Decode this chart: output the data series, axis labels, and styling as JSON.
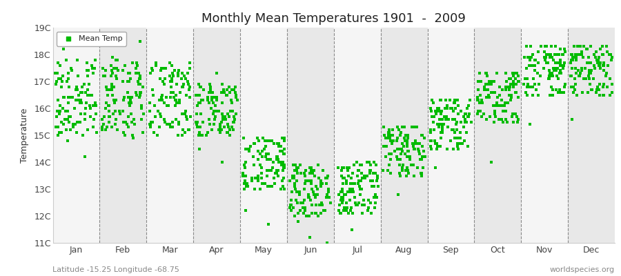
{
  "title": "Monthly Mean Temperatures 1901  -  2009",
  "ylabel": "Temperature",
  "subtitle": "Latitude -15.25 Longitude -68.75",
  "watermark": "worldspecies.org",
  "ylim": [
    11,
    19
  ],
  "yticks": [
    11,
    12,
    13,
    14,
    15,
    16,
    17,
    18,
    19
  ],
  "ytick_labels": [
    "11C",
    "12C",
    "13C",
    "14C",
    "15C",
    "16C",
    "17C",
    "18C",
    "19C"
  ],
  "months": [
    "Jan",
    "Feb",
    "Mar",
    "Apr",
    "May",
    "Jun",
    "Jul",
    "Aug",
    "Sep",
    "Oct",
    "Nov",
    "Dec"
  ],
  "dot_color": "#00bb00",
  "dot_size": 6,
  "bg_light": "#f5f5f5",
  "bg_dark": "#e8e8e8",
  "mean_temps_by_month": {
    "Jan": [
      17.5,
      17.8,
      16.2,
      15.5,
      16.8,
      15.1,
      17.3,
      16.5,
      15.8,
      14.2,
      15.3,
      16.1,
      15.7,
      16.4,
      17.2,
      18.5,
      15.9,
      16.7,
      15.4,
      14.8,
      16.3,
      17.1,
      15.6,
      15.2,
      16.0,
      17.4,
      18.2,
      16.8,
      15.5,
      15.9,
      16.6,
      17.0,
      15.3,
      16.2,
      15.8,
      16.5,
      17.3,
      15.1,
      16.9,
      15.4,
      17.6,
      16.3,
      15.7,
      16.1,
      17.8,
      15.0,
      16.4,
      15.5,
      17.2,
      16.0,
      15.8,
      16.7,
      17.5,
      15.3,
      16.2,
      15.6,
      17.1,
      16.4,
      15.9,
      16.8,
      17.4,
      15.2,
      16.0,
      15.7,
      17.0,
      16.3,
      15.5,
      16.9,
      17.7,
      15.1,
      16.5,
      15.4,
      17.3,
      16.1,
      15.8,
      16.6,
      17.2,
      15.0,
      16.4,
      15.9,
      17.6,
      16.2,
      15.5,
      16.3,
      17.1,
      15.7,
      16.0,
      16.8,
      17.5,
      15.4,
      16.1,
      15.6,
      17.4,
      16.5,
      15.2,
      16.7,
      17.8,
      15.3,
      16.9,
      15.8,
      17.0,
      16.6,
      16.2,
      15.1,
      17.3,
      15.9,
      16.4,
      17.7,
      15.6
    ],
    "Feb": [
      17.2,
      16.8,
      15.5,
      16.1,
      17.5,
      15.3,
      16.9,
      17.3,
      15.7,
      16.4,
      15.0,
      16.6,
      17.1,
      15.4,
      16.2,
      17.4,
      15.8,
      16.5,
      17.0,
      15.2,
      16.3,
      15.9,
      17.6,
      16.7,
      15.6,
      16.0,
      17.2,
      15.5,
      16.4,
      17.8,
      15.1,
      16.8,
      17.3,
      15.9,
      16.2,
      17.5,
      15.4,
      16.6,
      17.0,
      15.7,
      16.3,
      18.5,
      15.3,
      16.1,
      17.4,
      15.8,
      16.5,
      17.1,
      15.6,
      16.9,
      17.7,
      15.2,
      16.4,
      17.3,
      15.5,
      16.0,
      17.6,
      15.9,
      16.7,
      17.2,
      15.4,
      16.3,
      17.5,
      15.1,
      16.8,
      17.0,
      15.7,
      16.2,
      17.4,
      15.6,
      16.5,
      17.1,
      15.3,
      16.6,
      17.3,
      15.8,
      16.1,
      17.7,
      15.5,
      16.4,
      17.9,
      15.2,
      16.9,
      17.2,
      15.7,
      16.3,
      17.5,
      15.0,
      16.6,
      17.1,
      15.4,
      16.2,
      17.4,
      15.9,
      16.5,
      17.0,
      15.6,
      16.8,
      17.3,
      15.3,
      16.1,
      17.6,
      15.8,
      16.4,
      17.2,
      15.5,
      16.7,
      17.8,
      14.9
    ],
    "Mar": [
      16.5,
      15.8,
      16.2,
      17.3,
      15.5,
      16.9,
      17.1,
      15.3,
      16.4,
      17.5,
      15.7,
      16.1,
      16.8,
      15.4,
      16.6,
      17.2,
      15.0,
      16.3,
      17.4,
      15.9,
      16.5,
      17.7,
      15.2,
      16.7,
      17.0,
      15.6,
      16.2,
      17.3,
      15.4,
      16.8,
      17.5,
      15.1,
      16.4,
      17.1,
      15.8,
      16.3,
      17.6,
      15.5,
      16.9,
      17.2,
      15.3,
      16.5,
      17.4,
      15.7,
      16.1,
      17.0,
      15.9,
      16.6,
      17.3,
      15.4,
      16.2,
      17.5,
      15.2,
      16.8,
      17.1,
      15.6,
      16.4,
      17.7,
      15.0,
      16.3,
      17.4,
      15.8,
      16.5,
      17.0,
      15.5,
      16.7,
      17.2,
      15.3,
      16.1,
      17.6,
      15.7,
      16.4,
      17.3,
      15.4,
      16.9,
      17.5,
      15.1,
      16.6,
      17.1,
      15.9,
      16.3,
      17.4,
      15.5,
      16.8,
      17.0,
      15.6,
      16.2,
      17.7,
      15.3,
      16.5,
      17.3,
      15.8,
      16.1,
      17.5,
      15.4,
      16.7,
      17.2,
      15.0,
      16.4,
      17.6,
      15.7,
      16.3,
      17.1,
      15.5,
      16.9,
      17.4,
      15.2,
      16.6,
      17.3
    ],
    "Apr": [
      15.5,
      16.2,
      15.0,
      16.8,
      15.4,
      16.5,
      15.8,
      16.1,
      15.3,
      16.7,
      15.6,
      16.4,
      15.1,
      17.3,
      15.7,
      16.3,
      15.9,
      16.6,
      15.2,
      16.9,
      15.5,
      16.0,
      15.8,
      16.4,
      15.3,
      16.7,
      15.0,
      16.2,
      15.6,
      16.5,
      15.4,
      16.8,
      15.1,
      16.3,
      15.7,
      16.1,
      15.9,
      16.6,
      15.2,
      16.4,
      15.5,
      16.7,
      15.0,
      16.2,
      15.8,
      16.5,
      15.3,
      16.9,
      15.6,
      16.3,
      15.4,
      16.6,
      15.1,
      16.8,
      15.7,
      16.2,
      15.9,
      16.5,
      15.2,
      16.4,
      15.5,
      16.7,
      15.0,
      16.3,
      15.8,
      16.6,
      15.3,
      16.9,
      15.6,
      16.2,
      15.4,
      16.5,
      15.1,
      16.8,
      15.7,
      16.3,
      15.9,
      16.6,
      15.2,
      16.4,
      15.5,
      16.7,
      15.0,
      16.2,
      15.8,
      16.5,
      15.3,
      14.0,
      15.6,
      16.3,
      15.4,
      16.6,
      15.1,
      16.8,
      15.7,
      16.2,
      15.9,
      16.5,
      15.2,
      16.4,
      15.5,
      16.7,
      15.0,
      16.3,
      15.8,
      16.6,
      15.3,
      14.5,
      15.6
    ],
    "May": [
      13.5,
      14.2,
      13.8,
      14.5,
      13.1,
      14.8,
      13.4,
      14.1,
      13.7,
      14.4,
      13.0,
      14.7,
      13.3,
      14.0,
      13.6,
      14.3,
      13.9,
      14.6,
      13.2,
      14.9,
      13.5,
      14.2,
      13.8,
      14.5,
      13.1,
      14.8,
      13.4,
      14.1,
      13.7,
      14.4,
      13.0,
      14.7,
      13.3,
      14.0,
      13.6,
      14.3,
      13.9,
      14.6,
      13.2,
      14.9,
      13.5,
      14.2,
      13.8,
      14.5,
      13.1,
      14.8,
      13.4,
      14.1,
      13.7,
      14.4,
      13.0,
      14.7,
      13.3,
      14.0,
      13.6,
      14.3,
      13.9,
      14.6,
      13.2,
      14.9,
      13.5,
      12.2,
      13.8,
      14.5,
      13.1,
      14.8,
      13.4,
      14.1,
      13.7,
      14.4,
      13.0,
      14.7,
      13.3,
      14.0,
      11.7,
      14.3,
      13.9,
      14.6,
      13.2,
      14.9,
      13.5,
      14.2,
      13.8,
      14.5,
      13.1,
      14.8,
      13.4,
      14.1,
      13.7,
      14.4,
      13.0,
      14.7,
      13.3,
      14.0,
      13.6,
      14.3,
      13.9,
      14.6,
      13.2,
      14.9,
      13.5,
      14.2,
      13.8,
      14.5,
      13.1,
      14.8,
      13.4,
      14.1,
      13.7
    ],
    "Jun": [
      13.0,
      13.5,
      12.8,
      13.3,
      12.5,
      13.8,
      12.2,
      13.6,
      12.9,
      13.2,
      12.0,
      13.7,
      12.4,
      13.1,
      12.7,
      13.4,
      12.1,
      13.9,
      12.3,
      13.6,
      12.8,
      13.3,
      12.0,
      13.5,
      12.6,
      13.2,
      12.4,
      13.7,
      12.1,
      13.4,
      12.7,
      13.0,
      12.9,
      13.6,
      12.2,
      13.3,
      12.5,
      13.8,
      12.3,
      13.1,
      12.8,
      13.5,
      12.0,
      13.2,
      12.6,
      13.9,
      12.4,
      13.7,
      12.1,
      13.4,
      12.7,
      13.0,
      12.9,
      13.6,
      12.2,
      13.3,
      12.5,
      13.8,
      12.3,
      13.1,
      12.8,
      11.8,
      13.2,
      12.6,
      13.9,
      12.4,
      13.7,
      12.1,
      13.4,
      12.7,
      13.0,
      12.9,
      13.6,
      12.2,
      13.3,
      12.5,
      13.8,
      12.3,
      11.2,
      12.8,
      13.5,
      12.0,
      13.2,
      12.6,
      13.9,
      12.4,
      11.0,
      13.7,
      12.1,
      13.4,
      12.7,
      13.0,
      12.9,
      13.6,
      12.2,
      13.3,
      12.5,
      13.8,
      12.3,
      13.1,
      12.8,
      13.5,
      12.0,
      13.2,
      12.6,
      13.9,
      12.4,
      13.7,
      12.1
    ],
    "Jul": [
      13.2,
      13.7,
      12.9,
      13.4,
      12.6,
      13.9,
      12.3,
      13.5,
      13.0,
      13.3,
      12.1,
      13.8,
      12.5,
      13.2,
      12.8,
      13.5,
      12.2,
      14.0,
      12.4,
      13.7,
      12.9,
      13.4,
      12.1,
      13.6,
      12.7,
      13.3,
      12.5,
      13.8,
      12.2,
      13.5,
      12.8,
      13.1,
      13.0,
      13.7,
      12.3,
      13.4,
      12.6,
      13.9,
      12.4,
      13.2,
      12.9,
      13.6,
      12.1,
      13.3,
      12.7,
      14.0,
      12.5,
      13.8,
      12.2,
      13.5,
      12.8,
      13.1,
      13.0,
      13.7,
      12.3,
      13.4,
      12.6,
      13.9,
      12.4,
      13.2,
      12.9,
      13.6,
      12.1,
      13.3,
      12.7,
      14.0,
      12.5,
      13.8,
      12.2,
      13.5,
      12.8,
      13.1,
      13.0,
      13.7,
      12.3,
      13.4,
      12.6,
      13.9,
      12.4,
      13.2,
      12.9,
      13.6,
      12.1,
      13.3,
      12.7,
      11.5,
      12.5,
      13.8,
      12.2,
      13.5,
      12.8,
      13.1,
      13.0,
      13.7,
      12.3,
      13.4,
      12.6,
      13.9,
      12.4,
      13.2,
      12.9,
      13.6,
      12.1,
      13.3,
      12.7,
      14.0,
      12.5,
      13.8,
      12.2
    ],
    "Aug": [
      14.5,
      15.0,
      14.2,
      14.8,
      14.1,
      15.3,
      13.8,
      14.9,
      14.4,
      15.1,
      13.6,
      14.7,
      14.3,
      15.0,
      13.9,
      14.6,
      14.2,
      15.3,
      13.7,
      14.8,
      14.5,
      15.0,
      13.5,
      14.9,
      14.1,
      14.7,
      13.8,
      15.2,
      14.4,
      14.9,
      13.6,
      14.6,
      14.3,
      15.0,
      13.8,
      14.7,
      14.1,
      15.3,
      13.9,
      14.8,
      14.4,
      15.1,
      13.5,
      14.6,
      14.2,
      15.3,
      13.7,
      14.9,
      14.5,
      15.0,
      13.6,
      14.7,
      14.3,
      15.0,
      13.9,
      14.6,
      14.2,
      15.3,
      13.7,
      14.8,
      14.5,
      15.0,
      13.5,
      14.9,
      14.1,
      14.7,
      13.8,
      15.2,
      14.4,
      14.9,
      13.6,
      14.6,
      14.3,
      15.0,
      12.8,
      14.7,
      14.1,
      15.3,
      13.9,
      14.8,
      14.4,
      15.1,
      13.5,
      14.6,
      14.2,
      15.3,
      13.7,
      14.9,
      14.5,
      15.0,
      13.6,
      14.7,
      14.3,
      15.0,
      13.9,
      14.6,
      14.2,
      15.3,
      13.7,
      14.8,
      14.5,
      15.0,
      13.5,
      14.9,
      14.1,
      14.7,
      13.8,
      15.2,
      14.4
    ],
    "Sep": [
      15.5,
      16.0,
      15.2,
      15.8,
      15.1,
      16.3,
      14.8,
      15.9,
      15.4,
      16.1,
      14.6,
      15.7,
      15.3,
      16.0,
      14.9,
      15.6,
      15.2,
      16.3,
      14.7,
      15.8,
      15.5,
      16.0,
      14.5,
      15.9,
      15.1,
      15.7,
      14.8,
      16.2,
      15.4,
      15.9,
      14.6,
      15.6,
      15.3,
      16.0,
      14.8,
      15.7,
      15.1,
      16.3,
      14.9,
      15.8,
      15.4,
      16.1,
      14.5,
      15.6,
      15.2,
      16.3,
      14.7,
      15.9,
      15.5,
      16.0,
      14.6,
      15.7,
      15.3,
      16.0,
      14.9,
      15.6,
      15.2,
      16.3,
      14.7,
      15.8,
      15.5,
      16.0,
      14.5,
      15.9,
      15.1,
      15.7,
      14.8,
      16.2,
      15.4,
      15.9,
      14.6,
      15.6,
      15.3,
      16.0,
      13.8,
      15.7,
      15.1,
      16.3,
      14.9,
      15.8,
      15.4,
      16.1,
      14.5,
      15.6,
      15.2,
      16.3,
      14.7,
      15.9,
      15.5,
      16.0,
      14.6,
      15.7,
      15.3,
      16.0,
      14.9,
      15.6,
      15.2,
      16.3,
      14.7,
      15.8,
      15.5,
      16.0,
      14.5,
      15.9,
      15.1,
      15.7,
      14.8,
      16.2,
      15.4
    ],
    "Oct": [
      16.5,
      17.0,
      16.2,
      16.8,
      16.1,
      17.3,
      15.8,
      16.9,
      16.4,
      17.1,
      15.6,
      16.7,
      16.3,
      17.0,
      15.9,
      16.6,
      16.2,
      17.3,
      15.7,
      16.8,
      16.5,
      17.0,
      15.5,
      16.9,
      16.1,
      16.7,
      15.8,
      17.2,
      16.4,
      16.9,
      15.6,
      16.6,
      16.3,
      17.0,
      15.8,
      16.7,
      16.1,
      17.3,
      15.9,
      16.8,
      16.4,
      17.1,
      15.5,
      16.6,
      16.2,
      17.3,
      15.7,
      16.9,
      16.5,
      17.0,
      15.6,
      16.7,
      16.3,
      17.0,
      15.9,
      16.6,
      16.2,
      17.3,
      15.7,
      16.8,
      16.5,
      17.0,
      15.5,
      16.9,
      16.1,
      16.7,
      15.8,
      17.2,
      16.4,
      16.9,
      15.6,
      16.6,
      16.3,
      17.0,
      14.0,
      16.7,
      16.1,
      17.3,
      15.9,
      16.8,
      16.4,
      17.1,
      15.5,
      16.6,
      16.2,
      17.3,
      15.7,
      16.9,
      16.5,
      17.0,
      15.6,
      16.7,
      16.3,
      17.0,
      15.9,
      16.6,
      16.2,
      17.3,
      15.7,
      16.8,
      16.5,
      17.0,
      15.5,
      16.9,
      16.1,
      16.7,
      15.8,
      17.2,
      16.4
    ],
    "Nov": [
      17.5,
      18.0,
      17.2,
      17.8,
      17.1,
      18.3,
      16.8,
      17.9,
      17.4,
      18.1,
      16.6,
      17.7,
      17.3,
      18.0,
      16.9,
      17.6,
      17.2,
      18.3,
      16.7,
      17.8,
      17.5,
      18.0,
      16.5,
      17.9,
      17.1,
      17.7,
      16.8,
      18.2,
      17.4,
      17.9,
      16.6,
      17.6,
      17.3,
      18.0,
      16.8,
      17.7,
      17.1,
      18.3,
      16.9,
      17.8,
      17.4,
      18.1,
      16.5,
      17.6,
      17.2,
      18.3,
      16.7,
      17.9,
      17.5,
      18.0,
      16.6,
      17.7,
      17.3,
      18.0,
      16.9,
      17.6,
      17.2,
      18.3,
      16.7,
      17.8,
      17.5,
      18.0,
      16.5,
      17.9,
      17.1,
      17.7,
      16.8,
      18.2,
      17.4,
      17.9,
      16.6,
      17.6,
      17.3,
      18.0,
      15.4,
      17.7,
      17.1,
      18.3,
      16.9,
      17.8,
      17.4,
      18.1,
      16.5,
      17.6,
      17.2,
      18.3,
      16.7,
      17.9,
      17.5,
      18.0,
      16.6,
      17.7,
      17.3,
      18.0,
      16.9,
      17.6,
      17.2,
      18.3,
      16.7,
      17.8,
      17.5,
      18.0,
      16.5,
      17.9,
      17.1,
      17.7,
      16.8,
      18.2,
      17.4
    ],
    "Dec": [
      17.5,
      18.0,
      17.2,
      17.8,
      17.1,
      18.3,
      16.8,
      17.9,
      17.4,
      18.1,
      16.6,
      17.7,
      17.3,
      18.0,
      16.9,
      17.6,
      17.2,
      18.3,
      16.7,
      17.8,
      17.5,
      18.0,
      16.5,
      17.9,
      17.1,
      17.7,
      16.8,
      18.2,
      17.4,
      17.9,
      16.6,
      17.6,
      17.3,
      18.0,
      16.8,
      17.7,
      17.1,
      18.3,
      16.9,
      17.8,
      17.4,
      18.1,
      16.5,
      17.6,
      17.2,
      18.3,
      16.7,
      17.9,
      17.5,
      18.0,
      16.6,
      17.7,
      17.3,
      18.0,
      16.9,
      17.6,
      17.2,
      18.3,
      16.7,
      17.8,
      17.5,
      18.0,
      16.5,
      17.9,
      17.1,
      17.7,
      16.8,
      18.2,
      17.4,
      17.9,
      16.6,
      17.6,
      17.3,
      18.0,
      15.6,
      17.7,
      17.1,
      18.3,
      16.9,
      17.8,
      17.4,
      18.1,
      16.5,
      17.6,
      17.2,
      18.3,
      16.7,
      17.9,
      17.5,
      18.0,
      16.6,
      17.7,
      17.3,
      18.0,
      16.9,
      17.6,
      17.2,
      18.3,
      16.7,
      17.8,
      17.5,
      18.0,
      16.5,
      17.9,
      17.1,
      17.7,
      16.8,
      18.2,
      17.4
    ]
  }
}
